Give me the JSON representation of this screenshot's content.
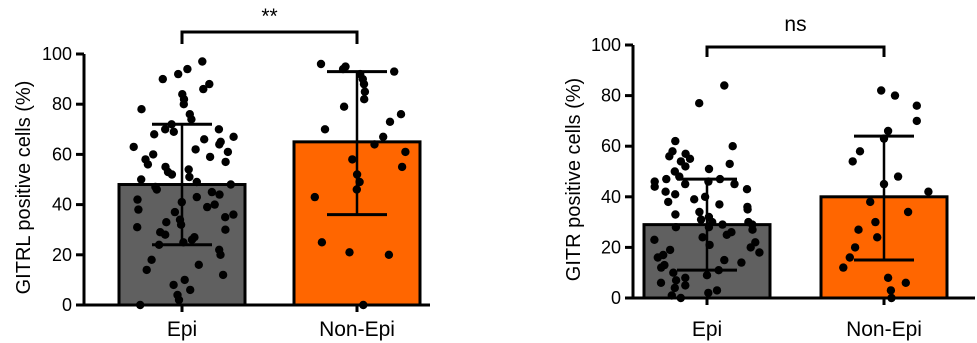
{
  "chart_data": [
    {
      "type": "bar",
      "ylabel": "GITRL positive cells (%)",
      "categories": [
        "Epi",
        "Non-Epi"
      ],
      "ylim": [
        0,
        100
      ],
      "yticks": [
        0,
        20,
        40,
        60,
        80,
        100
      ],
      "grid": false,
      "series": [
        {
          "values": [
            48,
            65
          ],
          "error_low": [
            24,
            36
          ],
          "error_high": [
            72,
            93
          ],
          "colors": [
            "#606060",
            "#ff6600"
          ],
          "points": [
            [
              97,
              94,
              92,
              90,
              88,
              86,
              84,
              82,
              80,
              78,
              76,
              74,
              72,
              70,
              70,
              69,
              68,
              67,
              66,
              65,
              64,
              63,
              62,
              61,
              60,
              59,
              58,
              57,
              56,
              55,
              54,
              53,
              52,
              51,
              50,
              49,
              48,
              47,
              46,
              45,
              44,
              43,
              42,
              41,
              40,
              39,
              38,
              37,
              36,
              35,
              34,
              33,
              32,
              31,
              30,
              29,
              28,
              27,
              26,
              25,
              24,
              22,
              20,
              18,
              16,
              14,
              12,
              10,
              8,
              6,
              4,
              2,
              0
            ],
            [
              96,
              95,
              94,
              93,
              92,
              90,
              88,
              85,
              82,
              79,
              76,
              73,
              70,
              67,
              64,
              61,
              58,
              55,
              52,
              49,
              46,
              43,
              25,
              21,
              20,
              0
            ]
          ]
        }
      ],
      "significance": "**"
    },
    {
      "type": "bar",
      "ylabel": "GITR positive cells (%)",
      "categories": [
        "Epi",
        "Non-Epi"
      ],
      "ylim": [
        0,
        100
      ],
      "yticks": [
        0,
        20,
        40,
        60,
        80,
        100
      ],
      "grid": false,
      "series": [
        {
          "values": [
            29,
            40
          ],
          "error_low": [
            11,
            15
          ],
          "error_high": [
            47,
            64
          ],
          "colors": [
            "#606060",
            "#ff6600"
          ],
          "points": [
            [
              84,
              77,
              62,
              60,
              58,
              57,
              56,
              55,
              54,
              53,
              52,
              51,
              50,
              48,
              47,
              47,
              46,
              46,
              45,
              45,
              44,
              43,
              42,
              41,
              40,
              39,
              38,
              37,
              36,
              35,
              34,
              33,
              32,
              31,
              30,
              30,
              29,
              29,
              28,
              28,
              27,
              26,
              25,
              24,
              23,
              22,
              21,
              20,
              19,
              18,
              17,
              16,
              15,
              14,
              13,
              12,
              11,
              10,
              9,
              8,
              7,
              6,
              5,
              4,
              3,
              2,
              1,
              0
            ],
            [
              82,
              80,
              76,
              70,
              66,
              63,
              58,
              54,
              48,
              45,
              42,
              38,
              34,
              30,
              27,
              24,
              20,
              16,
              12,
              8,
              6,
              3,
              0
            ]
          ]
        }
      ],
      "significance": "ns"
    }
  ]
}
